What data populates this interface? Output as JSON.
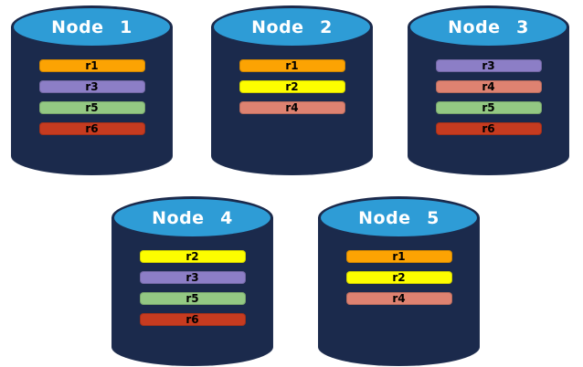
{
  "diagram": {
    "colors": {
      "cylinder_body": "#1B2A4C",
      "cylinder_top": "#2E9CD6",
      "title_text": "#FFFFFF",
      "bar_text": "#000000",
      "background": "#FFFFFF"
    },
    "replica_colors": {
      "r1": "#FCA303",
      "r2": "#FDFD00",
      "r3": "#8C7EC6",
      "r4": "#DE8271",
      "r5": "#93C883",
      "r6": "#C63B20"
    },
    "nodes": [
      {
        "label": "Node 1",
        "replicas": [
          "r1",
          "r3",
          "r5",
          "r6"
        ]
      },
      {
        "label": "Node 2",
        "replicas": [
          "r1",
          "r2",
          "r4"
        ]
      },
      {
        "label": "Node 3",
        "replicas": [
          "r3",
          "r4",
          "r5",
          "r6"
        ]
      },
      {
        "label": "Node 4",
        "replicas": [
          "r2",
          "r3",
          "r5",
          "r6"
        ]
      },
      {
        "label": "Node 5",
        "replicas": [
          "r1",
          "r2",
          "r4"
        ]
      }
    ]
  }
}
